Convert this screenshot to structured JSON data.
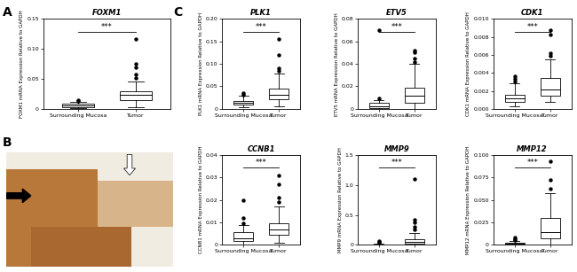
{
  "chart_data": [
    {
      "type": "box",
      "title": "FOXM1",
      "annotations": [
        "A",
        "***"
      ],
      "ylabel": "FOXM1 mRNA Expression Relative to GAPDH",
      "categories": [
        "Surrounding Mucosa",
        "Tumor"
      ],
      "boxes": [
        {
          "low": 0.001,
          "q1": 0.003,
          "median": 0.005,
          "q3": 0.008,
          "high": 0.012,
          "outliers": [
            0.013,
            0.015
          ]
        },
        {
          "low": 0.003,
          "q1": 0.015,
          "median": 0.023,
          "q3": 0.03,
          "high": 0.046,
          "outliers": [
            0.052,
            0.058,
            0.07,
            0.075,
            0.117
          ]
        }
      ],
      "ylim": [
        0,
        0.15
      ],
      "yticks": [
        0,
        0.05,
        {
          "value": 0.1,
          "label": "0.10"
        },
        0.15
      ]
    },
    {
      "type": "box",
      "title": "PLK1",
      "annotations": [
        "C",
        "***"
      ],
      "ylabel": "PLK1 mRNA Expression Relative to GAPDH",
      "categories": [
        "Surrounding Mucosa",
        "Tumor"
      ],
      "boxes": [
        {
          "low": 0.003,
          "q1": 0.009,
          "median": 0.013,
          "q3": 0.018,
          "high": 0.03,
          "outliers": [
            0.032,
            0.035
          ]
        },
        {
          "low": 0.005,
          "q1": 0.022,
          "median": 0.032,
          "q3": 0.045,
          "high": 0.078,
          "outliers": [
            0.085,
            0.09,
            0.12,
            0.155
          ]
        }
      ],
      "ylim": [
        0,
        0.2
      ],
      "yticks": [
        0,
        0.05,
        {
          "value": 0.1,
          "label": "0.10"
        },
        0.15,
        {
          "value": 0.2,
          "label": "0.20"
        }
      ]
    },
    {
      "type": "box",
      "title": "ETV5",
      "annotations": [
        "***"
      ],
      "ylabel": "ETV5 mRNA Expression Relative to GAPDH",
      "categories": [
        "Surrounding Mucosa",
        "Tumor"
      ],
      "boxes": [
        {
          "low": 0,
          "q1": 0.001,
          "median": 0.002,
          "q3": 0.005,
          "high": 0.008,
          "outliers": [
            0.009,
            0.07
          ]
        },
        {
          "low": 0,
          "q1": 0.005,
          "median": 0.012,
          "q3": 0.019,
          "high": 0.04,
          "outliers": [
            0.042,
            0.045,
            0.05,
            0.052
          ]
        }
      ],
      "ylim": [
        0,
        0.08
      ],
      "yticks": [
        0,
        0.02,
        0.04,
        0.06,
        0.08
      ]
    },
    {
      "type": "box",
      "title": "CDK1",
      "annotations": [
        "***"
      ],
      "ylabel": "CDK1 mRNA Expression Relative to GAPDH",
      "categories": [
        "Surrounding Mucosa",
        "Tumor"
      ],
      "boxes": [
        {
          "low": 0.0003,
          "q1": 0.0008,
          "median": 0.0012,
          "q3": 0.0016,
          "high": 0.0028,
          "outliers": [
            0.003,
            0.0033,
            0.0036
          ]
        },
        {
          "low": 0.0008,
          "q1": 0.0015,
          "median": 0.0022,
          "q3": 0.0034,
          "high": 0.0055,
          "outliers": [
            0.0059,
            0.0062,
            0.0083,
            0.0088
          ]
        }
      ],
      "ylim": [
        0,
        0.01
      ],
      "yticks": [
        {
          "value": 0,
          "label": "0.000"
        },
        0.002,
        0.004,
        0.006,
        {
          "value": 0.008,
          "label": "0.008"
        },
        {
          "value": 0.01,
          "label": "0.010"
        }
      ]
    },
    {
      "type": "box",
      "title": "CCNB1",
      "annotations": [
        "***"
      ],
      "ylabel": "CCNB1 mRNA Expression Relative to GAPDH",
      "categories": [
        "Surrounding Mucosa",
        "Tumor"
      ],
      "boxes": [
        {
          "low": 0,
          "q1": 0.0018,
          "median": 0.003,
          "q3": 0.0055,
          "high": 0.009,
          "outliers": [
            0.0095,
            0.012,
            0.02
          ]
        },
        {
          "low": 0.001,
          "q1": 0.0045,
          "median": 0.007,
          "q3": 0.0095,
          "high": 0.017,
          "outliers": [
            0.019,
            0.021,
            0.027,
            0.031
          ]
        }
      ],
      "ylim": [
        0,
        0.04
      ],
      "yticks": [
        0,
        0.01,
        0.02,
        0.03,
        0.04
      ]
    },
    {
      "type": "box",
      "title": "MMP9",
      "annotations": [
        "***"
      ],
      "ylabel": "MMP9 mRNA Expression Relative to GAPDH",
      "categories": [
        "Surrounding Mucosa",
        "Tumor"
      ],
      "boxes": [
        {
          "low": 0,
          "q1": 0.001,
          "median": 0.003,
          "q3": 0.008,
          "high": 0.02,
          "outliers": [
            0.03,
            0.05,
            0.07
          ]
        },
        {
          "low": 0,
          "q1": 0.02,
          "median": 0.05,
          "q3": 0.1,
          "high": 0.2,
          "outliers": [
            0.25,
            0.3,
            0.38,
            0.42,
            1.1
          ]
        }
      ],
      "ylim": [
        0,
        1.5
      ],
      "yticks": [
        0,
        0.5,
        1.0,
        1.5
      ]
    },
    {
      "type": "box",
      "title": "MMP12",
      "annotations": [
        "***"
      ],
      "ylabel": "MMP12 mRNA Expression Relative to GAPDH",
      "categories": [
        "Surrounding Mucosa",
        "Tumor"
      ],
      "boxes": [
        {
          "low": 0,
          "q1": 0.0005,
          "median": 0.001,
          "q3": 0.002,
          "high": 0.004,
          "outliers": [
            0.005,
            0.006,
            0.008
          ]
        },
        {
          "low": 0,
          "q1": 0.007,
          "median": 0.014,
          "q3": 0.03,
          "high": 0.058,
          "outliers": [
            0.062,
            0.072,
            0.093
          ]
        }
      ],
      "ylim": [
        0,
        0.1
      ],
      "yticks": [
        0,
        0.025,
        {
          "value": 0.05,
          "label": "0.050"
        },
        0.075,
        {
          "value": 0.1,
          "label": "0.100"
        }
      ]
    }
  ],
  "image_panel": {
    "label": "B"
  }
}
